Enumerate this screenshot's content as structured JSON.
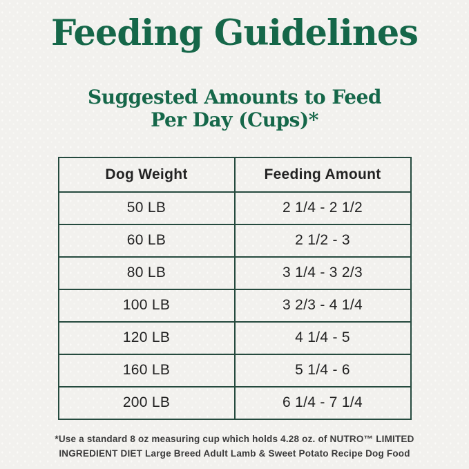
{
  "header": {
    "title": "Feeding Guidelines",
    "subtitle_lines": [
      "Suggested Amounts to Feed",
      "Per Day (Cups)*"
    ]
  },
  "table": {
    "headers": [
      "Dog Weight",
      "Feeding Amount"
    ],
    "rows": [
      {
        "weight": "50 LB",
        "amount": "2 1/4 - 2 1/2"
      },
      {
        "weight": "60 LB",
        "amount": "2 1/2 - 3"
      },
      {
        "weight": "80 LB",
        "amount": "3 1/4 - 3 2/3"
      },
      {
        "weight": "100 LB",
        "amount": "3 2/3 - 4 1/4"
      },
      {
        "weight": "120 LB",
        "amount": "4 1/4 - 5"
      },
      {
        "weight": "160 LB",
        "amount": "5 1/4 - 6"
      },
      {
        "weight": "200 LB",
        "amount": "6 1/4 - 7 1/4"
      }
    ]
  },
  "footnote": {
    "lines": [
      "*Use a standard 8 oz measuring cup which holds 4.28 oz. of NUTRO™ LIMITED",
      "INGREDIENT DIET Large Breed Adult Lamb & Sweet Potato Recipe Dog Food"
    ]
  },
  "colors": {
    "brand_green": "#156749",
    "table_border": "#254a3e",
    "table_text": "#222222",
    "footnote_text": "#3a3a3a",
    "background": "#f2f1ee"
  }
}
